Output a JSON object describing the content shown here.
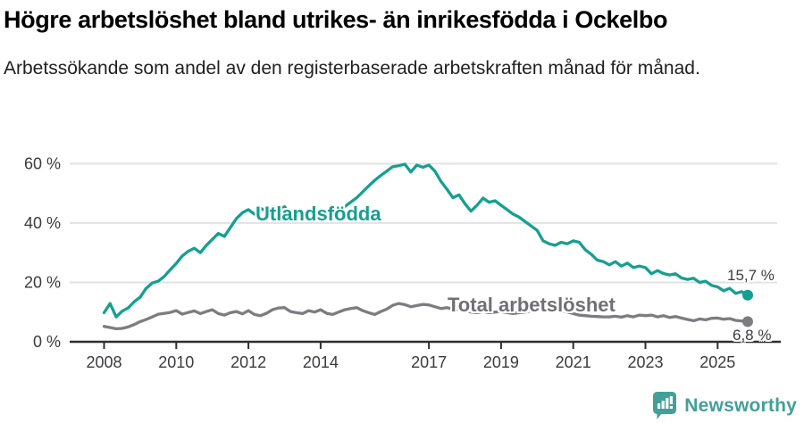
{
  "header": {
    "title": "Högre arbetslöshet bland utrikes- än inrikesfödda i Ockelbo",
    "subtitle": "Arbetssökande som andel av den registerbaserade arbetskraften månad för månad."
  },
  "chart_data": {
    "type": "line",
    "title": "Högre arbetslöshet bland utrikes- än inrikesfödda i Ockelbo",
    "xlabel": "",
    "ylabel": "Arbetssökande som andel av den registerbaserade arbetskraften",
    "x_start_year": 2008,
    "x_step_years": 0.16667,
    "xlim": [
      2007.9,
      2026.3
    ],
    "ylim": [
      0,
      62
    ],
    "grid": "horizontal",
    "legend_position": "inline-labels",
    "xticks": [
      {
        "year": 2008,
        "label": "2008"
      },
      {
        "year": 2010,
        "label": "2010"
      },
      {
        "year": 2012,
        "label": "2012"
      },
      {
        "year": 2014,
        "label": "2014"
      },
      {
        "year": 2017,
        "label": "2017"
      },
      {
        "year": 2019,
        "label": "2019"
      },
      {
        "year": 2021,
        "label": "2021"
      },
      {
        "year": 2023,
        "label": "2023"
      },
      {
        "year": 2025,
        "label": "2025"
      }
    ],
    "yticks": [
      {
        "value": 0,
        "label": "0 %"
      },
      {
        "value": 20,
        "label": "20 %"
      },
      {
        "value": 40,
        "label": "40 %"
      },
      {
        "value": 60,
        "label": "60 %"
      }
    ],
    "series": [
      {
        "name": "Utlandsfödda",
        "color": "#14a090",
        "end_label": "15,7 %",
        "end_value": 15.7,
        "values": [
          9.8,
          12.9,
          8.4,
          10.3,
          11.4,
          13.5,
          15.0,
          18.0,
          19.8,
          20.4,
          22.0,
          24.3,
          26.4,
          28.9,
          30.5,
          31.5,
          30.0,
          32.5,
          34.5,
          36.5,
          35.5,
          38.5,
          41.5,
          43.5,
          44.5,
          43.0,
          45.0,
          44.0,
          45.5,
          44.0,
          45.5,
          42.5,
          43.5,
          42.0,
          43.5,
          44.0,
          43.0,
          44.0,
          43.5,
          44.5,
          45.5,
          47.0,
          48.5,
          50.5,
          52.5,
          54.4,
          56.0,
          57.5,
          59.0,
          59.3,
          59.8,
          57.2,
          59.5,
          58.8,
          59.5,
          57.5,
          54.0,
          51.4,
          48.5,
          49.5,
          46.5,
          44.0,
          46.0,
          48.4,
          47.0,
          47.5,
          46.0,
          44.5,
          43.0,
          42.0,
          40.5,
          39.0,
          37.5,
          34.0,
          33.0,
          32.5,
          33.5,
          33.0,
          34.0,
          33.5,
          31.0,
          29.5,
          27.5,
          27.0,
          25.9,
          27.0,
          25.5,
          26.5,
          25.0,
          25.5,
          25.0,
          22.9,
          24.0,
          23.0,
          22.5,
          22.9,
          21.5,
          21.0,
          21.4,
          20.0,
          20.4,
          19.0,
          18.5,
          17.2,
          18.0,
          16.3,
          16.9,
          15.7
        ]
      },
      {
        "name": "Total arbetslöshet",
        "color": "#7c7c81",
        "label_color": "#706f75",
        "end_label": "6,8 %",
        "end_value": 6.8,
        "values": [
          5.2,
          4.8,
          4.4,
          4.5,
          5.0,
          5.8,
          6.8,
          7.5,
          8.4,
          9.3,
          9.6,
          9.9,
          10.5,
          9.3,
          9.9,
          10.4,
          9.5,
          10.2,
          10.8,
          9.5,
          9.0,
          9.8,
          10.2,
          9.4,
          10.5,
          9.2,
          8.8,
          9.6,
          10.8,
          11.4,
          11.5,
          10.2,
          9.8,
          9.5,
          10.5,
          10.0,
          10.8,
          9.6,
          9.2,
          10.0,
          10.8,
          11.2,
          11.5,
          10.5,
          9.8,
          9.2,
          10.2,
          11.0,
          12.3,
          12.9,
          12.5,
          11.8,
          12.2,
          12.6,
          12.4,
          11.8,
          11.2,
          11.5,
          11.0,
          10.8,
          10.5,
          10.0,
          9.8,
          10.2,
          9.8,
          10.0,
          10.2,
          9.8,
          9.5,
          9.8,
          10.0,
          10.4,
          10.8,
          11.2,
          11.5,
          11.0,
          10.5,
          10.0,
          9.5,
          9.0,
          8.8,
          8.6,
          8.5,
          8.4,
          8.4,
          8.6,
          8.3,
          8.8,
          8.4,
          9.0,
          8.8,
          9.0,
          8.4,
          8.8,
          8.2,
          8.5,
          8.0,
          7.5,
          7.1,
          7.7,
          7.4,
          7.9,
          8.0,
          7.6,
          7.8,
          7.2,
          7.0,
          6.8
        ]
      }
    ],
    "colors": {
      "grid": "#e2e2e2",
      "axis": "#2f2f33",
      "tick_text": "#3b3b40"
    }
  },
  "footer": {
    "brand": "Newsworthy",
    "logo_icon": "bar-chart-speech-bubble-icon",
    "brand_color": "#43a098"
  }
}
